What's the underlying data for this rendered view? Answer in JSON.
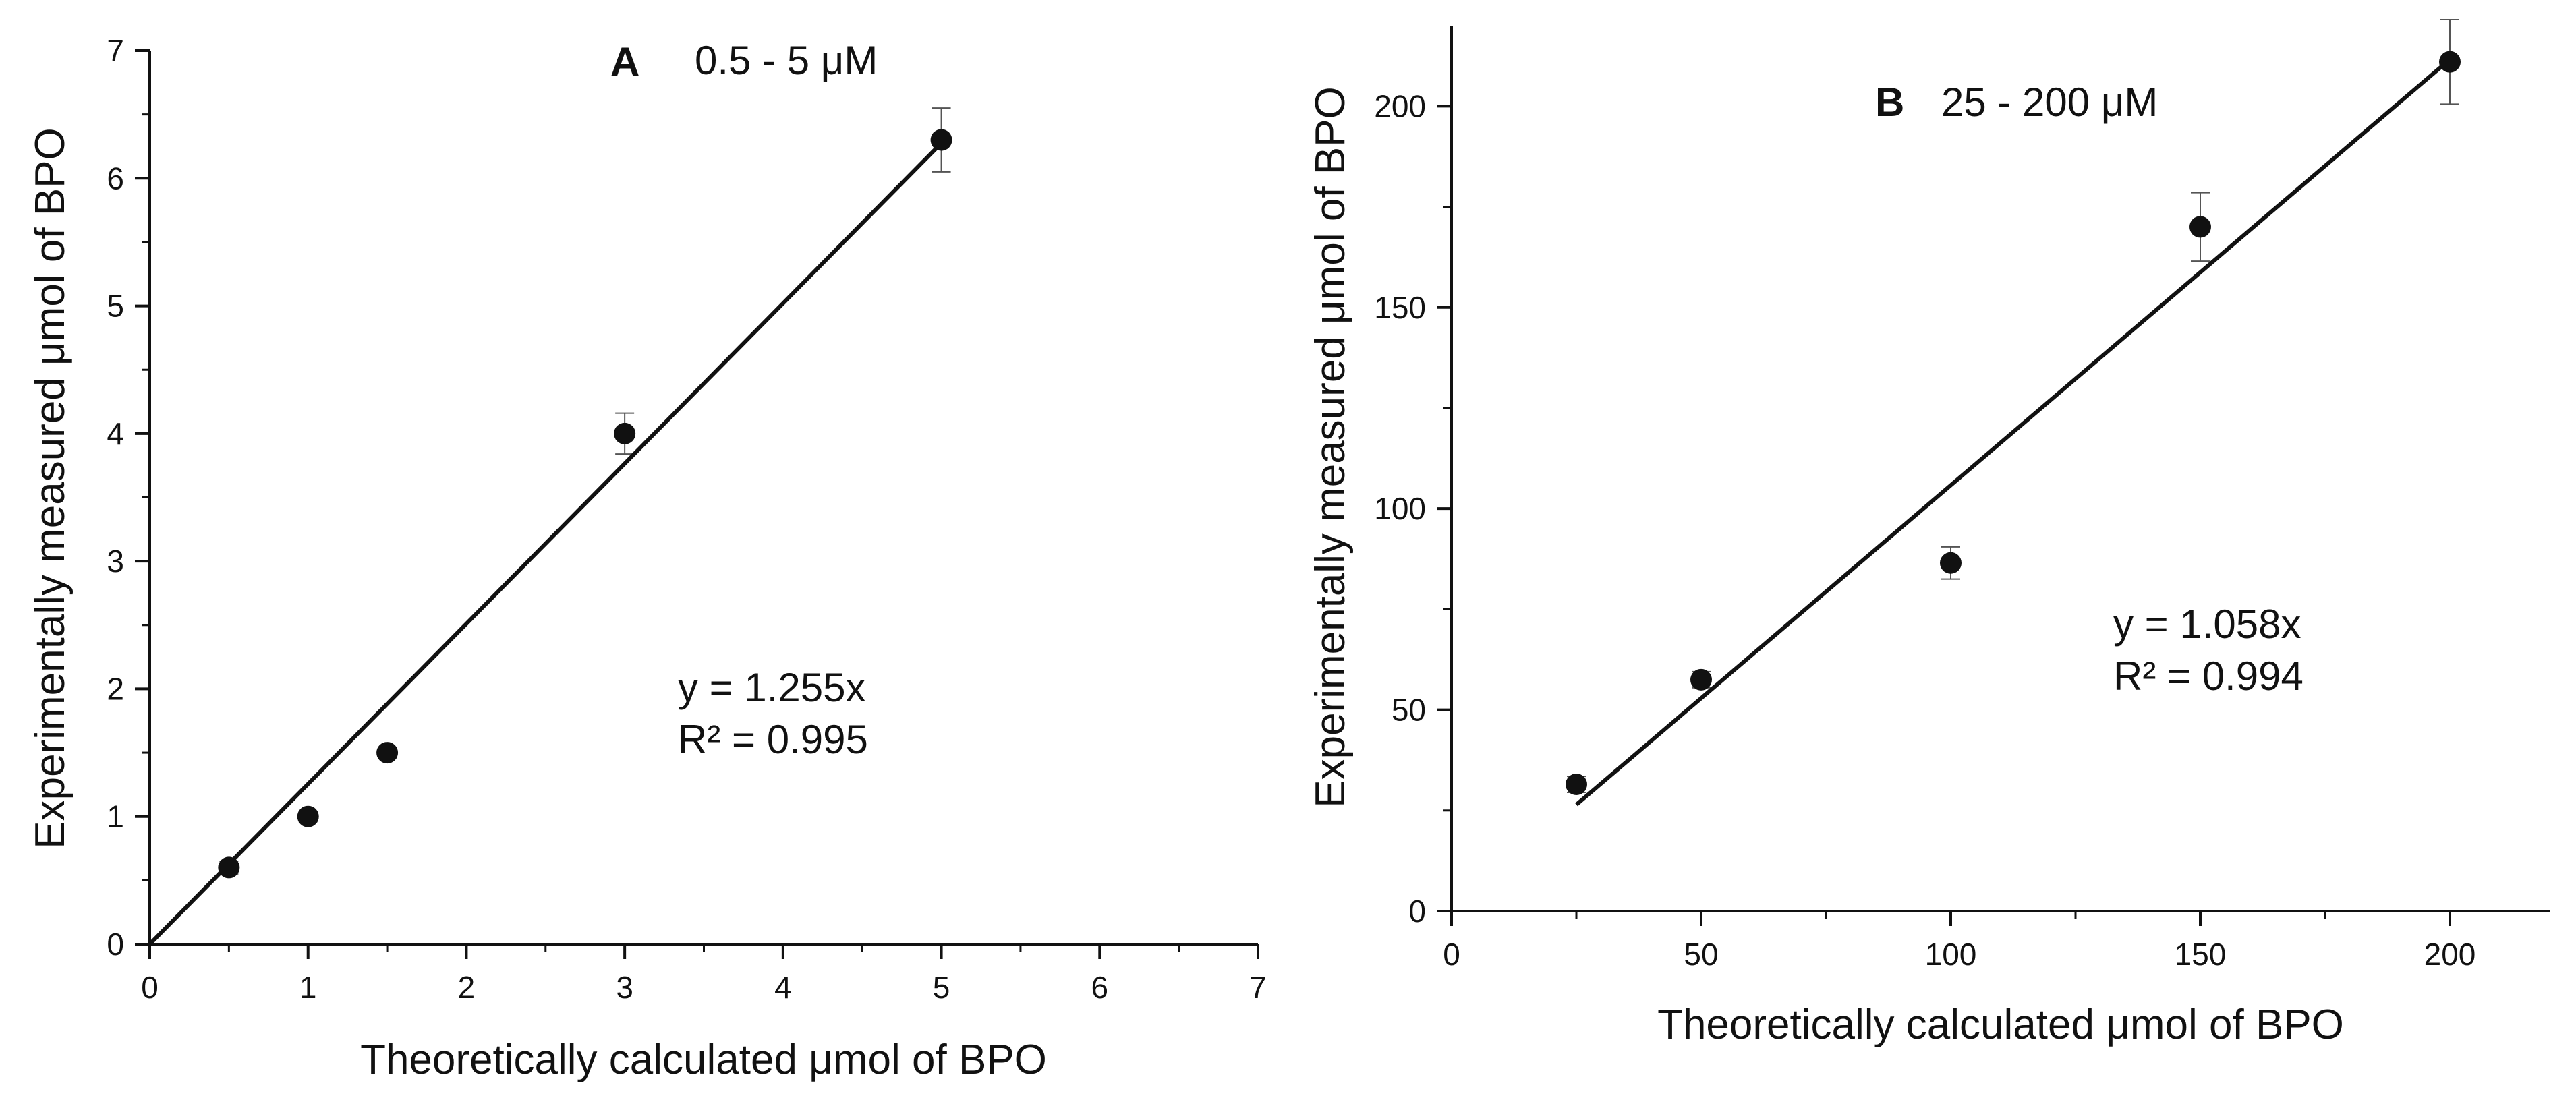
{
  "chart_data": [
    {
      "type": "scatter",
      "panel_letter": "A",
      "range_label": "0.5 - 5 μM",
      "xlabel": "Theoretically calculated μmol of BPO",
      "ylabel": "Experimentally measured  μmol of BPO",
      "xlim": [
        0,
        7
      ],
      "ylim": [
        0,
        7
      ],
      "xticks": [
        0,
        1,
        2,
        3,
        4,
        5,
        6,
        7
      ],
      "yticks": [
        0,
        1,
        2,
        3,
        4,
        5,
        6,
        7
      ],
      "xtick_labels": [
        "0",
        "1",
        "2",
        "3",
        "4",
        "5",
        "6",
        "7"
      ],
      "ytick_labels": [
        "0",
        "1",
        "2",
        "3",
        "4",
        "5",
        "6",
        "7"
      ],
      "points": [
        {
          "x": 0.5,
          "y": 0.6,
          "err": 0.05
        },
        {
          "x": 1.0,
          "y": 1.0,
          "err": 0.04
        },
        {
          "x": 1.5,
          "y": 1.5,
          "err": 0.04
        },
        {
          "x": 3.0,
          "y": 4.0,
          "err": 0.16
        },
        {
          "x": 5.0,
          "y": 6.3,
          "err": 0.25
        }
      ],
      "fit": {
        "slope": 1.255,
        "x_range": [
          0,
          5
        ],
        "equation": "y = 1.255x",
        "r2": "R² = 0.995"
      }
    },
    {
      "type": "scatter",
      "panel_letter": "B",
      "range_label": "25 - 200 μM",
      "xlabel": "Theoretically calculated μmol of BPO",
      "ylabel": "Experimentally measured μmol of BPO",
      "xlim": [
        0,
        220
      ],
      "ylim": [
        0,
        220
      ],
      "xticks": [
        0,
        50,
        100,
        150,
        200
      ],
      "yticks": [
        0,
        50,
        100,
        150,
        200
      ],
      "xtick_labels": [
        "0",
        "50",
        "100",
        "150",
        "200"
      ],
      "ytick_labels": [
        "0",
        "50",
        "100",
        "150",
        "200"
      ],
      "points": [
        {
          "x": 25,
          "y": 31.5,
          "err": 2
        },
        {
          "x": 50,
          "y": 57.5,
          "err": 2
        },
        {
          "x": 100,
          "y": 86.5,
          "err": 4
        },
        {
          "x": 150,
          "y": 170,
          "err": 8.5
        },
        {
          "x": 200,
          "y": 211,
          "err": 10.5
        }
      ],
      "fit": {
        "slope": 1.058,
        "x_range": [
          25,
          200
        ],
        "equation": "y = 1.058x",
        "r2": "R² = 0.994"
      }
    }
  ]
}
